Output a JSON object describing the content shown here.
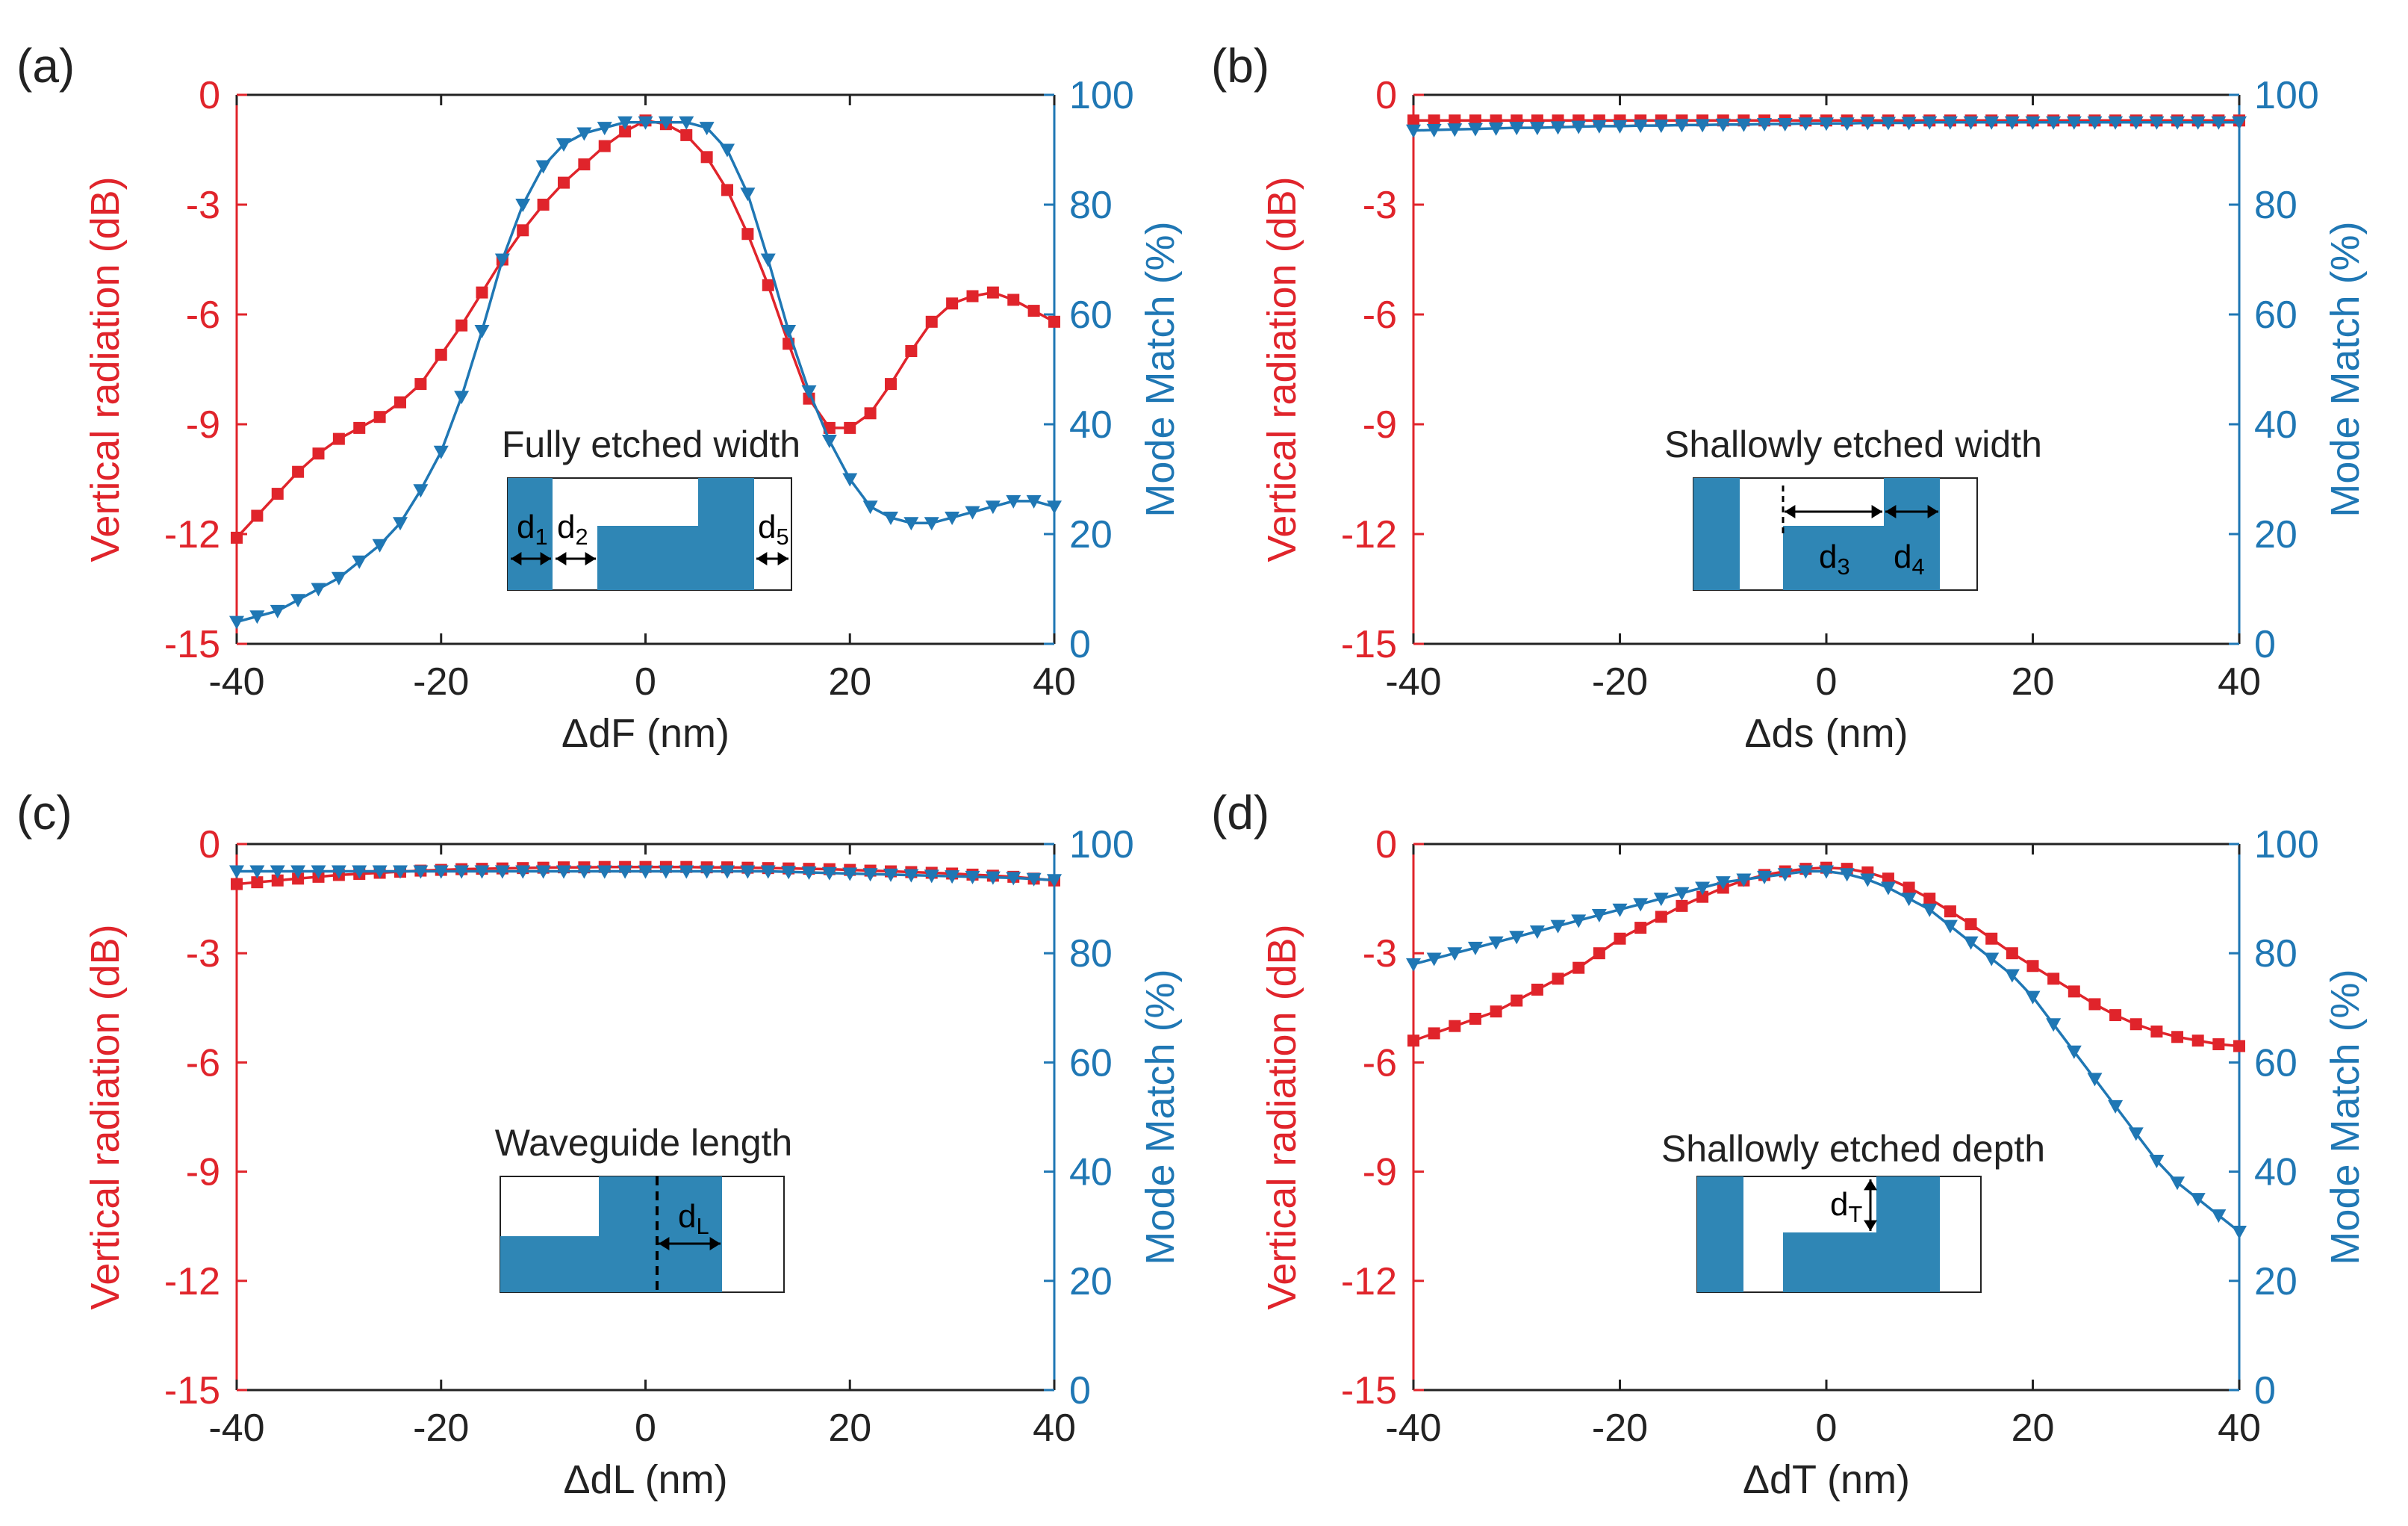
{
  "colors": {
    "left": "#e0242b",
    "right": "#1f77b4",
    "inset": "#2f86b5",
    "axis": "#222222",
    "text": "#222222"
  },
  "chart_data": [
    {
      "panel": "(a)",
      "type": "line",
      "xlabel": "ΔdF (nm)",
      "ylabel_left": "Vertical radiation (dB)",
      "ylabel_right": "Mode Match (%)",
      "xlim": [
        -40,
        40
      ],
      "ylim_left": [
        -15,
        0
      ],
      "ylim_right": [
        0,
        100
      ],
      "xticks": [
        -40,
        -20,
        0,
        20,
        40
      ],
      "yticks_left": [
        0,
        -3,
        -6,
        -9,
        -12,
        -15
      ],
      "yticks_right": [
        100,
        80,
        60,
        40,
        20,
        0
      ],
      "inset_label": "Fully etched width",
      "inset_type": "fully",
      "inset_texts": [
        "d1",
        "d2",
        "d5"
      ],
      "x": [
        -40,
        -38,
        -36,
        -34,
        -32,
        -30,
        -28,
        -26,
        -24,
        -22,
        -20,
        -18,
        -16,
        -14,
        -12,
        -10,
        -8,
        -6,
        -4,
        -2,
        0,
        2,
        4,
        6,
        8,
        10,
        12,
        14,
        16,
        18,
        20,
        22,
        24,
        26,
        28,
        30,
        32,
        34,
        36,
        38,
        40
      ],
      "series": [
        {
          "name": "Vertical radiation",
          "axis": "left",
          "marker": "square",
          "values": [
            -12.1,
            -11.5,
            -10.9,
            -10.3,
            -9.8,
            -9.4,
            -9.1,
            -8.8,
            -8.4,
            -7.9,
            -7.1,
            -6.3,
            -5.4,
            -4.5,
            -3.7,
            -3.0,
            -2.4,
            -1.9,
            -1.4,
            -1.0,
            -0.7,
            -0.8,
            -1.1,
            -1.7,
            -2.6,
            -3.8,
            -5.2,
            -6.8,
            -8.3,
            -9.1,
            -9.1,
            -8.7,
            -7.9,
            -7.0,
            -6.2,
            -5.7,
            -5.5,
            -5.4,
            -5.6,
            -5.9,
            -6.2
          ]
        },
        {
          "name": "Mode Match",
          "axis": "right",
          "marker": "triangle-down",
          "values": [
            4,
            5,
            6,
            8,
            10,
            12,
            15,
            18,
            22,
            28,
            35,
            45,
            57,
            70,
            80,
            87,
            91,
            93,
            94,
            95,
            95,
            95,
            95,
            94,
            90,
            82,
            70,
            57,
            46,
            37,
            30,
            25,
            23,
            22,
            22,
            23,
            24,
            25,
            26,
            26,
            25
          ]
        }
      ]
    },
    {
      "panel": "(b)",
      "type": "line",
      "xlabel": "Δds (nm)",
      "ylabel_left": "Vertical radiation (dB)",
      "ylabel_right": "Mode Match (%)",
      "xlim": [
        -40,
        40
      ],
      "ylim_left": [
        -15,
        0
      ],
      "ylim_right": [
        0,
        100
      ],
      "xticks": [
        -40,
        -20,
        0,
        20,
        40
      ],
      "yticks_left": [
        0,
        -3,
        -6,
        -9,
        -12,
        -15
      ],
      "yticks_right": [
        100,
        80,
        60,
        40,
        20,
        0
      ],
      "inset_label": "Shallowly etched width",
      "inset_type": "shallow-width",
      "inset_texts": [
        "d3",
        "d4"
      ],
      "x": [
        -40,
        -38,
        -36,
        -34,
        -32,
        -30,
        -28,
        -26,
        -24,
        -22,
        -20,
        -18,
        -16,
        -14,
        -12,
        -10,
        -8,
        -6,
        -4,
        -2,
        0,
        2,
        4,
        6,
        8,
        10,
        12,
        14,
        16,
        18,
        20,
        22,
        24,
        26,
        28,
        30,
        32,
        34,
        36,
        38,
        40
      ],
      "series": [
        {
          "name": "Vertical radiation",
          "axis": "left",
          "marker": "square",
          "values": [
            -0.7,
            -0.7,
            -0.7,
            -0.7,
            -0.7,
            -0.7,
            -0.7,
            -0.7,
            -0.7,
            -0.7,
            -0.7,
            -0.7,
            -0.7,
            -0.7,
            -0.7,
            -0.7,
            -0.7,
            -0.7,
            -0.7,
            -0.7,
            -0.7,
            -0.7,
            -0.7,
            -0.7,
            -0.7,
            -0.7,
            -0.7,
            -0.7,
            -0.7,
            -0.7,
            -0.7,
            -0.7,
            -0.7,
            -0.7,
            -0.7,
            -0.7,
            -0.7,
            -0.7,
            -0.7,
            -0.7,
            -0.7
          ]
        },
        {
          "name": "Mode Match",
          "axis": "right",
          "marker": "triangle-down",
          "values": [
            93.5,
            93.6,
            93.7,
            93.8,
            93.9,
            94,
            94,
            94.1,
            94.2,
            94.3,
            94.3,
            94.4,
            94.4,
            94.5,
            94.5,
            94.6,
            94.6,
            94.7,
            94.7,
            94.8,
            94.8,
            94.8,
            94.9,
            94.9,
            94.9,
            95,
            95,
            95,
            95,
            95,
            95,
            95,
            95,
            95,
            95,
            95,
            95,
            95,
            95,
            95,
            95
          ]
        }
      ]
    },
    {
      "panel": "(c)",
      "type": "line",
      "xlabel": "ΔdL (nm)",
      "ylabel_left": "Vertical radiation (dB)",
      "ylabel_right": "Mode Match (%)",
      "xlim": [
        -40,
        40
      ],
      "ylim_left": [
        -15,
        0
      ],
      "ylim_right": [
        0,
        100
      ],
      "xticks": [
        -40,
        -20,
        0,
        20,
        40
      ],
      "yticks_left": [
        0,
        -3,
        -6,
        -9,
        -12,
        -15
      ],
      "yticks_right": [
        100,
        80,
        60,
        40,
        20,
        0
      ],
      "inset_label": "Waveguide length",
      "inset_type": "length",
      "inset_texts": [
        "dL"
      ],
      "x": [
        -40,
        -38,
        -36,
        -34,
        -32,
        -30,
        -28,
        -26,
        -24,
        -22,
        -20,
        -18,
        -16,
        -14,
        -12,
        -10,
        -8,
        -6,
        -4,
        -2,
        0,
        2,
        4,
        6,
        8,
        10,
        12,
        14,
        16,
        18,
        20,
        22,
        24,
        26,
        28,
        30,
        32,
        34,
        36,
        38,
        40
      ],
      "series": [
        {
          "name": "Vertical radiation",
          "axis": "left",
          "marker": "square",
          "values": [
            -1.1,
            -1.05,
            -1.0,
            -0.95,
            -0.9,
            -0.85,
            -0.82,
            -0.79,
            -0.76,
            -0.73,
            -0.71,
            -0.69,
            -0.68,
            -0.67,
            -0.66,
            -0.65,
            -0.64,
            -0.64,
            -0.63,
            -0.63,
            -0.63,
            -0.63,
            -0.63,
            -0.64,
            -0.64,
            -0.65,
            -0.66,
            -0.67,
            -0.68,
            -0.69,
            -0.71,
            -0.73,
            -0.75,
            -0.77,
            -0.79,
            -0.81,
            -0.84,
            -0.87,
            -0.9,
            -0.95,
            -1.0
          ]
        },
        {
          "name": "Mode Match",
          "axis": "right",
          "marker": "triangle-down",
          "values": [
            95,
            95,
            95,
            95,
            95,
            95,
            95,
            95,
            95,
            95,
            95,
            95,
            95,
            95,
            95,
            95,
            95,
            95,
            95,
            95,
            95,
            95,
            95,
            95,
            95,
            95,
            95,
            94.9,
            94.8,
            94.7,
            94.6,
            94.5,
            94.4,
            94.3,
            94.2,
            94.1,
            94,
            93.9,
            93.8,
            93.6,
            93.4
          ]
        }
      ]
    },
    {
      "panel": "(d)",
      "type": "line",
      "xlabel": "ΔdT (nm)",
      "ylabel_left": "Vertical radiation (dB)",
      "ylabel_right": "Mode Match (%)",
      "xlim": [
        -40,
        40
      ],
      "ylim_left": [
        -15,
        0
      ],
      "ylim_right": [
        0,
        100
      ],
      "xticks": [
        -40,
        -20,
        0,
        20,
        40
      ],
      "yticks_left": [
        0,
        -3,
        -6,
        -9,
        -12,
        -15
      ],
      "yticks_right": [
        100,
        80,
        60,
        40,
        20,
        0
      ],
      "inset_label": "Shallowly etched depth",
      "inset_type": "depth",
      "inset_texts": [
        "dT"
      ],
      "x": [
        -40,
        -38,
        -36,
        -34,
        -32,
        -30,
        -28,
        -26,
        -24,
        -22,
        -20,
        -18,
        -16,
        -14,
        -12,
        -10,
        -8,
        -6,
        -4,
        -2,
        0,
        2,
        4,
        6,
        8,
        10,
        12,
        14,
        16,
        18,
        20,
        22,
        24,
        26,
        28,
        30,
        32,
        34,
        36,
        38,
        40
      ],
      "series": [
        {
          "name": "Vertical radiation",
          "axis": "left",
          "marker": "square",
          "values": [
            -5.4,
            -5.2,
            -5.0,
            -4.8,
            -4.6,
            -4.3,
            -4.0,
            -3.7,
            -3.4,
            -3.0,
            -2.6,
            -2.3,
            -2.0,
            -1.7,
            -1.45,
            -1.2,
            -1.0,
            -0.85,
            -0.75,
            -0.68,
            -0.65,
            -0.68,
            -0.78,
            -0.95,
            -1.2,
            -1.5,
            -1.85,
            -2.2,
            -2.6,
            -3.0,
            -3.35,
            -3.7,
            -4.05,
            -4.4,
            -4.7,
            -4.95,
            -5.15,
            -5.3,
            -5.4,
            -5.5,
            -5.55
          ]
        },
        {
          "name": "Mode Match",
          "axis": "right",
          "marker": "triangle-down",
          "values": [
            78,
            79,
            80,
            81,
            82,
            83,
            84,
            85,
            86,
            87,
            88,
            89,
            90,
            91,
            92,
            93,
            93.5,
            94,
            94.5,
            95,
            95,
            94.5,
            93.5,
            92,
            90,
            88,
            85,
            82,
            79,
            76,
            72,
            67,
            62,
            57,
            52,
            47,
            42,
            38,
            35,
            32,
            29
          ]
        }
      ]
    }
  ]
}
